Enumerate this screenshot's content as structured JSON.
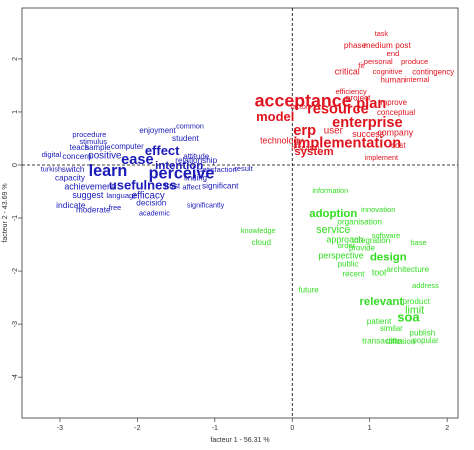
{
  "chart_data": {
    "type": "scatter",
    "x_label": "facteur 1 - 56.31 %",
    "y_label": "facteur 2 - 43.69 %",
    "xlim": [
      -3.49,
      2.14
    ],
    "ylim": [
      -4.77,
      2.96
    ],
    "xticks": [
      -3,
      -2,
      -1,
      0,
      1,
      2
    ],
    "yticks": [
      2,
      1,
      0,
      -1,
      -2,
      -3,
      -4
    ],
    "series": [
      {
        "color": "#e0141e",
        "labels": [
          "acceptance",
          "resource",
          "plan",
          "enterprise",
          "model",
          "erp",
          "user",
          "implementation",
          "system",
          "technology",
          "success",
          "company",
          "project",
          "critical",
          "human",
          "phase",
          "medium",
          "post",
          "efficiency",
          "improve",
          "conceptual",
          "cost",
          "contingency",
          "internal",
          "cognitive",
          "produce",
          "implement",
          "research",
          "factor",
          "fit",
          "end",
          "task",
          "personal"
        ],
        "x": [
          0.14,
          0.59,
          1.02,
          0.97,
          -0.22,
          0.16,
          0.53,
          0.71,
          0.28,
          -0.14,
          0.98,
          1.33,
          0.85,
          0.71,
          1.3,
          0.81,
          1.11,
          1.43,
          0.76,
          1.3,
          1.34,
          1.37,
          1.82,
          1.61,
          1.23,
          1.58,
          1.15,
          0.17,
          0.09,
          0.89,
          1.3,
          1.15,
          1.11
        ],
        "values": [
          1.19,
          1.04,
          1.15,
          0.79,
          0.89,
          0.64,
          0.64,
          0.4,
          0.25,
          0.45,
          0.57,
          0.6,
          1.26,
          1.75,
          1.6,
          2.25,
          2.25,
          2.25,
          1.38,
          1.17,
          0.98,
          0.36,
          1.75,
          1.6,
          1.75,
          1.94,
          0.13,
          0.32,
          1.09,
          1.87,
          2.09,
          2.47,
          1.94
        ],
        "sizes": [
          4,
          3,
          3,
          3,
          2.5,
          3,
          1.5,
          3,
          2,
          1.2,
          1.2,
          1.2,
          1,
          1.2,
          1,
          1,
          1,
          1,
          0.8,
          0.9,
          0.9,
          0.9,
          0.9,
          0.8,
          0.8,
          0.8,
          0.7,
          0.7,
          0.7,
          0.8,
          0.8,
          0.7,
          0.8
        ]
      },
      {
        "color": "#1a1ab8",
        "labels": [
          "learn",
          "perceive",
          "ease",
          "effect",
          "intention",
          "usefulness",
          "efficacy",
          "positive",
          "achievement",
          "suggest",
          "indicate",
          "moderate",
          "capacity",
          "switch",
          "concern",
          "teach",
          "sample",
          "computer",
          "student",
          "relationship",
          "satisfaction",
          "finding",
          "trust",
          "significant",
          "decision",
          "language",
          "enjoyment",
          "procedure",
          "attitude",
          "result",
          "affect",
          "academic",
          "free",
          "significantly",
          "digital",
          "turkish",
          "stimulus",
          "common"
        ],
        "x": [
          -2.38,
          -1.43,
          -2.0,
          -1.68,
          -1.46,
          -1.93,
          -1.86,
          -2.42,
          -2.62,
          -2.64,
          -2.86,
          -2.57,
          -2.87,
          -2.83,
          -2.78,
          -2.75,
          -2.51,
          -2.13,
          -1.38,
          -1.24,
          -0.96,
          -1.25,
          -1.55,
          -0.93,
          -1.82,
          -2.2,
          -1.74,
          -2.62,
          -1.24,
          -0.63,
          -1.3,
          -1.78,
          -2.29,
          -1.12,
          -3.11,
          -3.11,
          -2.57,
          -1.32
        ],
        "values": [
          -0.13,
          -0.17,
          0.09,
          0.25,
          -0.02,
          -0.4,
          -0.58,
          0.17,
          -0.42,
          -0.58,
          -0.77,
          -0.85,
          -0.25,
          -0.09,
          0.15,
          0.32,
          0.32,
          0.34,
          0.49,
          0.08,
          -0.09,
          -0.25,
          -0.4,
          -0.4,
          -0.72,
          -0.58,
          0.64,
          0.57,
          0.15,
          -0.08,
          -0.42,
          -0.92,
          -0.81,
          -0.77,
          0.19,
          -0.09,
          0.43,
          0.72
        ],
        "sizes": [
          3.5,
          3.5,
          3,
          2.5,
          2,
          2.5,
          1.5,
          1.5,
          1.2,
          1.2,
          1.1,
          1,
          1,
          1,
          1,
          0.9,
          0.9,
          0.9,
          1,
          1,
          0.8,
          0.9,
          1,
          1,
          1,
          0.8,
          0.9,
          0.8,
          0.9,
          0.8,
          0.8,
          0.7,
          0.7,
          0.7,
          0.8,
          0.7,
          0.8,
          0.7
        ]
      },
      {
        "color": "#33dd22",
        "labels": [
          "adoption",
          "service",
          "design",
          "soa",
          "relevant",
          "limit",
          "perspective",
          "approach",
          "integration",
          "organisation",
          "tool",
          "architecture",
          "product",
          "cloud",
          "patient",
          "transaction",
          "publish",
          "popular",
          "diffusion",
          "similar",
          "public",
          "recent",
          "provide",
          "innovation",
          "information",
          "software",
          "future",
          "order",
          "address",
          "base",
          "knowledge"
        ],
        "x": [
          0.53,
          0.53,
          1.24,
          1.5,
          1.15,
          1.58,
          0.63,
          0.68,
          1.02,
          0.87,
          1.12,
          1.49,
          1.6,
          -0.4,
          1.12,
          1.16,
          1.68,
          1.72,
          1.4,
          1.28,
          0.72,
          0.79,
          0.9,
          1.11,
          0.49,
          1.21,
          0.21,
          0.7,
          1.72,
          1.63,
          -0.44
        ],
        "values": [
          -0.92,
          -1.23,
          -1.74,
          -2.89,
          -2.58,
          -2.75,
          -1.72,
          -1.42,
          -1.43,
          -1.08,
          -2.04,
          -1.98,
          -2.58,
          -1.47,
          -2.96,
          -3.32,
          -3.17,
          -3.32,
          -3.34,
          -3.09,
          -1.87,
          -2.06,
          -1.57,
          -0.85,
          -0.49,
          -1.34,
          -2.36,
          -1.53,
          -2.28,
          -1.47,
          -1.25
        ],
        "sizes": [
          2,
          1.8,
          2,
          2.5,
          2,
          1.8,
          1.2,
          1.2,
          1,
          1,
          1.2,
          1,
          1,
          1,
          1,
          1,
          1,
          0.9,
          0.9,
          0.9,
          0.9,
          0.9,
          0.9,
          0.8,
          0.7,
          0.8,
          0.9,
          0.8,
          0.8,
          0.8,
          0.7
        ]
      }
    ]
  }
}
